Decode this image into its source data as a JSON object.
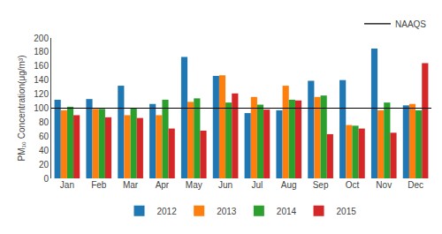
{
  "chart_data": {
    "type": "bar",
    "categories": [
      "Jan",
      "Feb",
      "Mar",
      "Apr",
      "May",
      "Jun",
      "Jul",
      "Aug",
      "Sep",
      "Oct",
      "Nov",
      "Dec"
    ],
    "series": [
      {
        "name": "2012",
        "values": [
          112,
          113,
          132,
          106,
          173,
          146,
          93,
          97,
          139,
          140,
          185,
          104
        ]
      },
      {
        "name": "2013",
        "values": [
          97,
          99,
          90,
          90,
          109,
          147,
          116,
          132,
          116,
          76,
          97,
          106
        ]
      },
      {
        "name": "2014",
        "values": [
          102,
          99,
          100,
          112,
          114,
          108,
          105,
          112,
          118,
          75,
          108,
          97
        ]
      },
      {
        "name": "2015",
        "values": [
          90,
          87,
          86,
          71,
          68,
          121,
          98,
          111,
          63,
          71,
          65,
          164
        ]
      }
    ],
    "reference_lines": [
      {
        "value": 100,
        "label": "NAAQS",
        "color": "#000000"
      }
    ],
    "ylabel": "PM₁₀ Concentration(μg/m³)",
    "ylim": [
      0,
      200
    ],
    "yticks": [
      0,
      20,
      40,
      60,
      80,
      100,
      120,
      140,
      160,
      180,
      200
    ],
    "grid": false,
    "legend": "bottom"
  }
}
